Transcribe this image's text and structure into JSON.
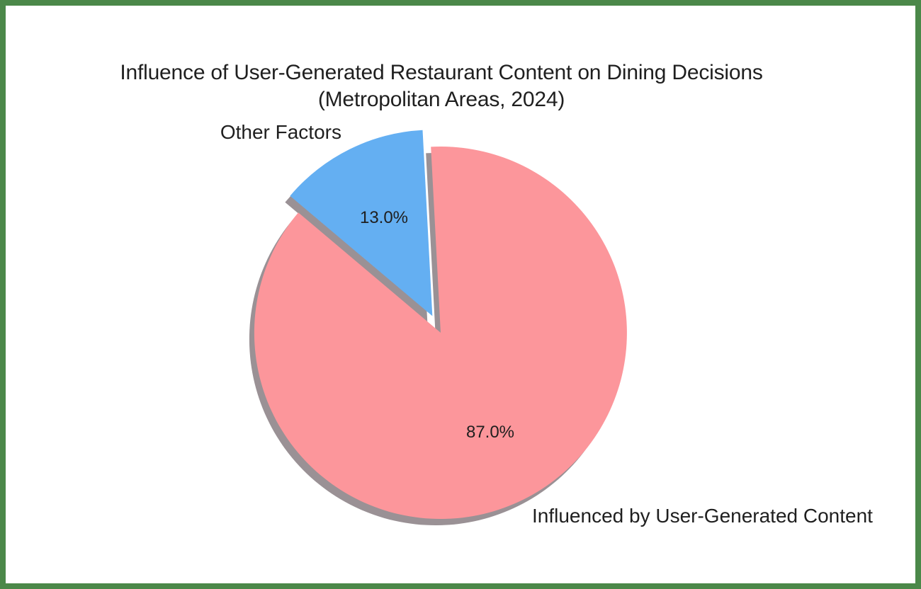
{
  "chart_data": {
    "type": "pie",
    "title": "Influence of User-Generated Restaurant Content on Dining Decisions (Metropolitan Areas, 2024)",
    "title_line1": "Influence of User-Generated Restaurant Content on Dining Decisions",
    "title_line2": "(Metropolitan Areas, 2024)",
    "slices": [
      {
        "id": "influenced-by-ugc",
        "label": "Influenced by User-Generated Content",
        "value": 87.0,
        "pct_label": "87.0%",
        "color": "#FC969B",
        "explode": 0
      },
      {
        "id": "other-factors",
        "label": "Other Factors",
        "value": 13.0,
        "pct_label": "13.0%",
        "color": "#64AFF2",
        "explode": 0.1
      }
    ],
    "startangle": 93,
    "counterclock": false,
    "shadow": true,
    "shadow_color": "#9A9195",
    "legend": "none",
    "grid": "off",
    "text_color": "#1F1F1F",
    "background": "#FFFFFF",
    "frame_color": "#4B8849"
  }
}
